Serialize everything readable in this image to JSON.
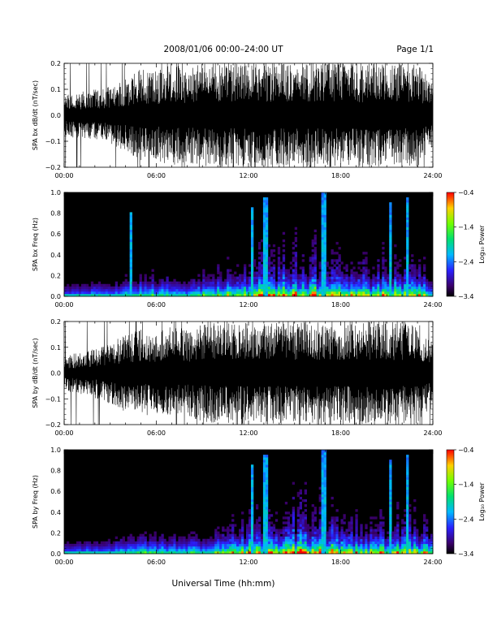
{
  "header": {
    "title": "2008/01/06  00:00–24:00 UT",
    "page": "Page 1/1"
  },
  "xlabel": "Universal Time (hh:mm)",
  "colors": {
    "background": "#ffffff",
    "spectrogram_floor": "#000000",
    "trace": "#000000"
  },
  "chart_data": [
    {
      "type": "line",
      "title": "",
      "ylabel": "SPA bx dB/dt (nT/sec)",
      "xlim": [
        0,
        24
      ],
      "ylim": [
        -0.2,
        0.2
      ],
      "xticks": [
        "00:00",
        "06:00",
        "12:00",
        "18:00",
        "24:00"
      ],
      "yticks": [
        "0.2",
        "0.1",
        "0.0",
        "−0.1",
        "−0.2"
      ],
      "ytick_values": [
        0.2,
        0.1,
        0.0,
        -0.1,
        -0.2
      ],
      "series": [
        {
          "x": [
            0,
            1,
            2,
            3,
            4,
            5,
            6,
            7,
            8,
            9,
            10,
            11,
            12,
            13,
            14,
            15,
            16,
            17,
            18,
            19,
            20,
            21,
            22,
            23,
            24
          ],
          "amplitude": [
            0.08,
            0.09,
            0.1,
            0.11,
            0.14,
            0.18,
            0.17,
            0.2,
            0.18,
            0.2,
            0.2,
            0.2,
            0.2,
            0.2,
            0.2,
            0.2,
            0.2,
            0.2,
            0.2,
            0.2,
            0.2,
            0.2,
            0.2,
            0.2,
            0.12
          ]
        }
      ]
    },
    {
      "type": "heatmap",
      "title": "",
      "ylabel": "SPA bx Freq (Hz)",
      "xlim": [
        0,
        24
      ],
      "ylim": [
        0,
        1.0
      ],
      "xticks": [
        "00:00",
        "06:00",
        "12:00",
        "18:00",
        "24:00"
      ],
      "yticks": [
        "1.0",
        "0.8",
        "0.6",
        "0.4",
        "0.2",
        "0.0"
      ],
      "ytick_values": [
        1.0,
        0.8,
        0.6,
        0.4,
        0.2,
        0.0
      ],
      "colorbar": {
        "label": "Log₁₀ Power",
        "range": [
          -3.4,
          -0.4
        ],
        "ticks": [
          "−0.4",
          "−1.4",
          "−2.4",
          "−3.4"
        ]
      },
      "activity": [
        0.15,
        0.2,
        0.25,
        0.2,
        0.4,
        0.5,
        0.45,
        0.4,
        0.35,
        0.45,
        0.55,
        0.6,
        0.75,
        0.75,
        0.8,
        0.85,
        0.9,
        0.85,
        0.75,
        0.7,
        0.65,
        0.7,
        0.75,
        0.7,
        0.5
      ],
      "bursts": [
        {
          "t": 4.3,
          "h": 0.8
        },
        {
          "t": 12.25,
          "h": 0.85
        },
        {
          "t": 13.1,
          "h": 0.95
        },
        {
          "t": 16.9,
          "h": 1.0
        },
        {
          "t": 21.2,
          "h": 0.9
        },
        {
          "t": 22.4,
          "h": 0.95
        }
      ]
    },
    {
      "type": "line",
      "title": "",
      "ylabel": "SPA by dB/dt (nT/sec)",
      "xlim": [
        0,
        24
      ],
      "ylim": [
        -0.2,
        0.2
      ],
      "xticks": [
        "00:00",
        "06:00",
        "12:00",
        "18:00",
        "24:00"
      ],
      "yticks": [
        "0.2",
        "0.1",
        "0.0",
        "−0.1",
        "−0.2"
      ],
      "ytick_values": [
        0.2,
        0.1,
        0.0,
        -0.1,
        -0.2
      ],
      "series": [
        {
          "x": [
            0,
            1,
            2,
            3,
            4,
            5,
            6,
            7,
            8,
            9,
            10,
            11,
            12,
            13,
            14,
            15,
            16,
            17,
            18,
            19,
            20,
            21,
            22,
            23,
            24
          ],
          "amplitude": [
            0.07,
            0.08,
            0.1,
            0.12,
            0.15,
            0.17,
            0.16,
            0.18,
            0.17,
            0.19,
            0.2,
            0.2,
            0.2,
            0.2,
            0.2,
            0.2,
            0.2,
            0.2,
            0.2,
            0.2,
            0.2,
            0.2,
            0.2,
            0.2,
            0.13
          ]
        }
      ]
    },
    {
      "type": "heatmap",
      "title": "",
      "ylabel": "SPA by Freq (Hz)",
      "xlim": [
        0,
        24
      ],
      "ylim": [
        0,
        1.0
      ],
      "xticks": [
        "00:00",
        "06:00",
        "12:00",
        "18:00",
        "24:00"
      ],
      "yticks": [
        "1.0",
        "0.8",
        "0.6",
        "0.4",
        "0.2",
        "0.0"
      ],
      "ytick_values": [
        1.0,
        0.8,
        0.6,
        0.4,
        0.2,
        0.0
      ],
      "colorbar": {
        "label": "Log₁₀ Power",
        "range": [
          -3.4,
          -0.4
        ],
        "ticks": [
          "−0.4",
          "−1.4",
          "−2.4",
          "−3.4"
        ]
      },
      "activity": [
        0.15,
        0.2,
        0.25,
        0.2,
        0.4,
        0.45,
        0.45,
        0.4,
        0.35,
        0.45,
        0.55,
        0.6,
        0.75,
        0.75,
        0.8,
        0.9,
        0.9,
        0.85,
        0.75,
        0.7,
        0.65,
        0.7,
        0.75,
        0.7,
        0.5
      ],
      "bursts": [
        {
          "t": 12.25,
          "h": 0.85
        },
        {
          "t": 13.1,
          "h": 0.95
        },
        {
          "t": 16.9,
          "h": 1.0
        },
        {
          "t": 21.2,
          "h": 0.9
        },
        {
          "t": 22.4,
          "h": 0.95
        }
      ]
    }
  ]
}
